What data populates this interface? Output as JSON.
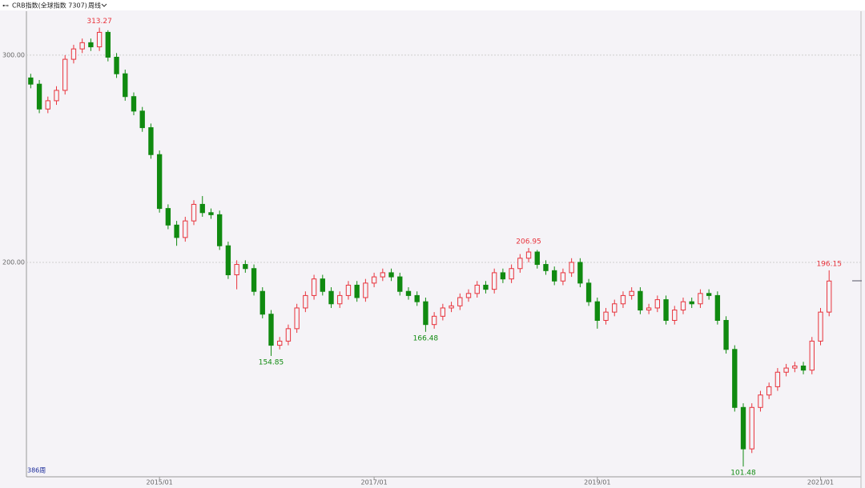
{
  "chart_data": {
    "type": "candlestick",
    "title": "CRB指数(全球指数 7307)",
    "period": "周线",
    "bar_count": "386周",
    "up_color": "#e8333c",
    "down_color": "#108a10",
    "ylim": [
      97.3,
      321.2
    ],
    "yticks": [
      {
        "value": 300,
        "label": "300.00"
      },
      {
        "value": 200,
        "label": "200.00"
      }
    ],
    "grid": true,
    "categories": [
      null,
      null,
      null,
      null,
      null,
      null,
      null,
      null,
      null,
      null,
      null,
      null,
      null,
      null,
      null,
      "2015/01",
      null,
      null,
      null,
      null,
      null,
      null,
      null,
      null,
      null,
      null,
      null,
      null,
      null,
      null,
      null,
      null,
      null,
      null,
      null,
      null,
      null,
      null,
      null,
      null,
      "2017/01",
      null,
      null,
      null,
      null,
      null,
      null,
      null,
      null,
      null,
      null,
      null,
      null,
      null,
      null,
      null,
      null,
      null,
      null,
      null,
      null,
      null,
      null,
      null,
      null,
      null,
      "2019/01",
      null,
      null,
      null,
      null,
      null,
      null,
      null,
      null,
      null,
      null,
      null,
      null,
      null,
      null,
      null,
      null,
      null,
      null,
      null,
      null,
      null,
      null,
      null,
      null,
      null,
      "2021/01",
      null
    ],
    "open": [
      289,
      286,
      274,
      278,
      283,
      298,
      303,
      306,
      304,
      311,
      299,
      291,
      280,
      273,
      265,
      252,
      226,
      218,
      212,
      220,
      228,
      224,
      223,
      208,
      194,
      199,
      197,
      186,
      175,
      160,
      162,
      168,
      178,
      184,
      192,
      186,
      180,
      184,
      189,
      183,
      190,
      193,
      195,
      193,
      186,
      184,
      181,
      170,
      174,
      178,
      179,
      183,
      185,
      189,
      187,
      195,
      192,
      197,
      202,
      205,
      199,
      196,
      191,
      195,
      200,
      190,
      181,
      172,
      176,
      180,
      184,
      186,
      177,
      178,
      182,
      172,
      177,
      181,
      180,
      185,
      184,
      172,
      158,
      130,
      110,
      130,
      136,
      140,
      147,
      149,
      150,
      148,
      162,
      176
    ],
    "high": [
      291,
      288,
      280,
      285,
      300,
      305,
      308,
      308,
      313.27,
      312,
      301,
      293,
      282,
      275,
      267,
      254,
      228,
      220,
      222,
      230,
      232,
      226,
      225,
      210,
      201,
      201,
      199,
      188,
      177,
      164,
      170,
      180,
      186,
      194,
      194,
      188,
      186,
      191,
      191,
      192,
      195,
      197,
      197,
      195,
      188,
      186,
      183,
      176,
      180,
      181,
      185,
      187,
      191,
      191,
      197,
      197,
      199,
      204,
      206.95,
      206,
      201,
      198,
      197,
      202,
      202,
      192,
      183,
      178,
      182,
      186,
      188,
      188,
      180,
      184,
      184,
      179,
      183,
      183,
      187,
      187,
      186,
      174,
      160,
      132,
      132,
      138,
      142,
      149,
      151,
      152,
      152,
      164,
      178,
      196.15
    ],
    "low": [
      284,
      272,
      272,
      276,
      281,
      296,
      301,
      302,
      302,
      297,
      289,
      278,
      271,
      263,
      250,
      224,
      216,
      208,
      210,
      218,
      222,
      221,
      206,
      192,
      187,
      195,
      184,
      173,
      154.85,
      158,
      160,
      166,
      176,
      182,
      184,
      178,
      178,
      182,
      181,
      181,
      188,
      191,
      191,
      184,
      182,
      179,
      166.48,
      168,
      172,
      176,
      177,
      181,
      183,
      185,
      185,
      190,
      190,
      195,
      200,
      197,
      194,
      189,
      189,
      193,
      188,
      179,
      168,
      170,
      174,
      178,
      182,
      175,
      175,
      176,
      170,
      170,
      175,
      178,
      178,
      182,
      170,
      156,
      128,
      101.48,
      108,
      128,
      134,
      138,
      145,
      147,
      146,
      146,
      160,
      174
    ],
    "close": [
      286,
      274,
      278,
      283,
      298,
      303,
      306,
      304,
      311,
      299,
      291,
      280,
      273,
      265,
      252,
      226,
      218,
      212,
      220,
      228,
      224,
      223,
      208,
      194,
      199,
      197,
      186,
      175,
      160,
      162,
      168,
      178,
      184,
      192,
      186,
      180,
      184,
      189,
      183,
      190,
      193,
      195,
      193,
      186,
      184,
      181,
      170,
      174,
      178,
      179,
      183,
      185,
      189,
      187,
      195,
      192,
      197,
      202,
      205,
      199,
      196,
      191,
      195,
      200,
      190,
      181,
      172,
      176,
      180,
      184,
      186,
      177,
      178,
      182,
      172,
      177,
      181,
      180,
      185,
      184,
      172,
      158,
      130,
      110,
      130,
      136,
      140,
      147,
      149,
      150,
      148,
      162,
      176,
      191
    ]
  }
}
